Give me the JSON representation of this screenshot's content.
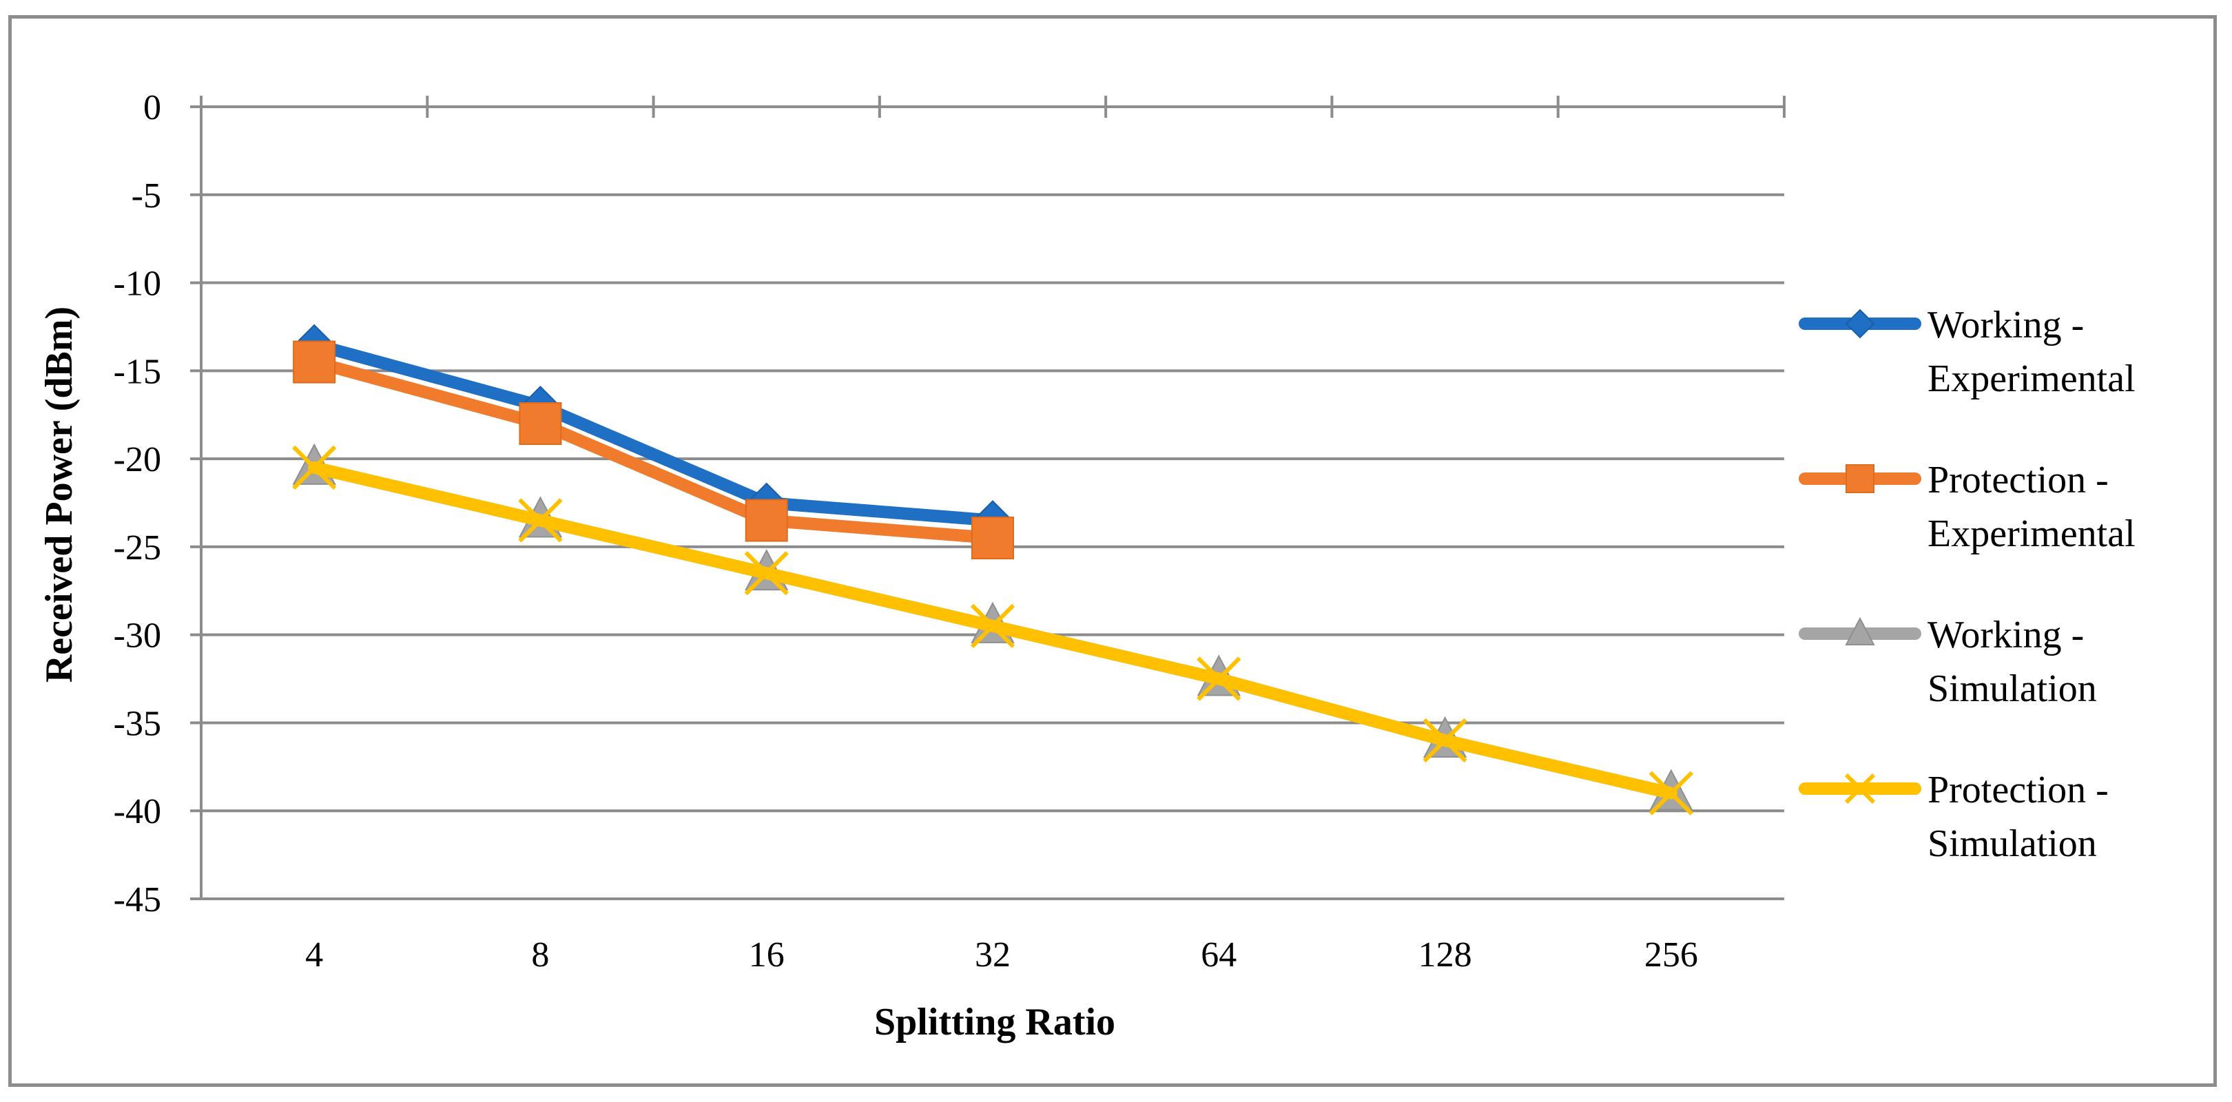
{
  "chart_data": {
    "type": "line",
    "title": "",
    "xlabel": "Splitting Ratio",
    "ylabel": "Received Power (dBm)",
    "categories": [
      "4",
      "8",
      "16",
      "32",
      "64",
      "128",
      "256"
    ],
    "ylim": [
      -45,
      0
    ],
    "ytick_step": 5,
    "ytick_labels": [
      "0",
      "-5",
      "-10",
      "-15",
      "-20",
      "-25",
      "-30",
      "-35",
      "-40",
      "-45"
    ],
    "grid": true,
    "legend_position": "right",
    "series": [
      {
        "name": "Working - Experimental",
        "legend_lines": [
          "Working -",
          "Experimental"
        ],
        "color": "#1f6fc5",
        "marker": "diamond",
        "values": [
          -13.5,
          -17,
          -22.5,
          -23.5,
          null,
          null,
          null
        ]
      },
      {
        "name": "Protection - Experimental",
        "legend_lines": [
          "Protection -",
          "Experimental"
        ],
        "color": "#f07b2c",
        "marker": "square",
        "values": [
          -14.5,
          -18,
          -23.5,
          -24.5,
          null,
          null,
          null
        ]
      },
      {
        "name": "Working - Simulation",
        "legend_lines": [
          "Working -",
          "Simulation"
        ],
        "color": "#a5a5a5",
        "marker": "triangle",
        "values": [
          -20.5,
          -23.5,
          -26.5,
          -29.5,
          -32.5,
          -36,
          -39
        ]
      },
      {
        "name": "Protection - Simulation",
        "legend_lines": [
          "Protection -",
          "Simulation"
        ],
        "color": "#ffc000",
        "marker": "x",
        "values": [
          -20.5,
          -23.5,
          -26.5,
          -29.5,
          -32.5,
          -36,
          -39
        ]
      }
    ]
  }
}
